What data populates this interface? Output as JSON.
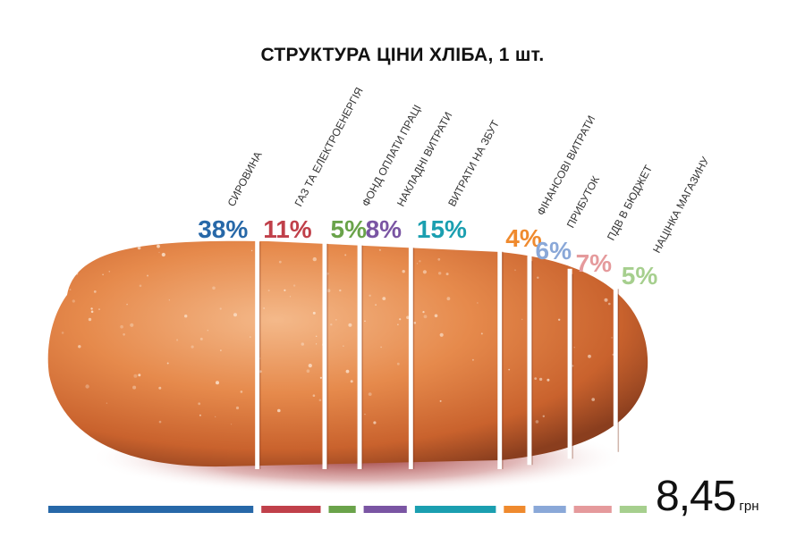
{
  "title": "СТРУКТУРА ЦІНИ ХЛІБА, 1 шт.",
  "total": {
    "value": "8,45",
    "unit": "грн"
  },
  "colors": {
    "loaf_light": "#f0a26b",
    "loaf_mid": "#d9773c",
    "loaf_dark": "#8a3e1e",
    "shadow": "#8b1a1a"
  },
  "chart_data": {
    "type": "bar",
    "title": "СТРУКТУРА ЦІНИ ХЛІБА, 1 шт.",
    "unit": "%",
    "categories": [
      "СИРОВИНА",
      "ГАЗ ТА ЕЛЕКТРОЕНЕРГІЯ",
      "ФОНД ОПЛАТИ ПРАЦІ",
      "НАКЛАДНІ ВИТРАТИ",
      "ВИТРАТИ НА ЗБУТ",
      "ФІНАНСОВІ ВИТРАТИ",
      "ПРИБУТОК",
      "ПДВ В БЮДЖЕТ",
      "НАЦІНКА МАГАЗИНУ"
    ],
    "values": [
      38,
      11,
      5,
      8,
      15,
      4,
      6,
      7,
      5
    ],
    "value_labels": [
      "38%",
      "11%",
      "5%",
      "8%",
      "15%",
      "4%",
      "6%",
      "7%",
      "5%"
    ],
    "colors": [
      "#2768a8",
      "#c0404a",
      "#6aa34a",
      "#7a55a3",
      "#1b9fb0",
      "#ef8a2e",
      "#8aa8d8",
      "#e59a9c",
      "#a6cf8e"
    ],
    "total": "8,45 грн"
  }
}
